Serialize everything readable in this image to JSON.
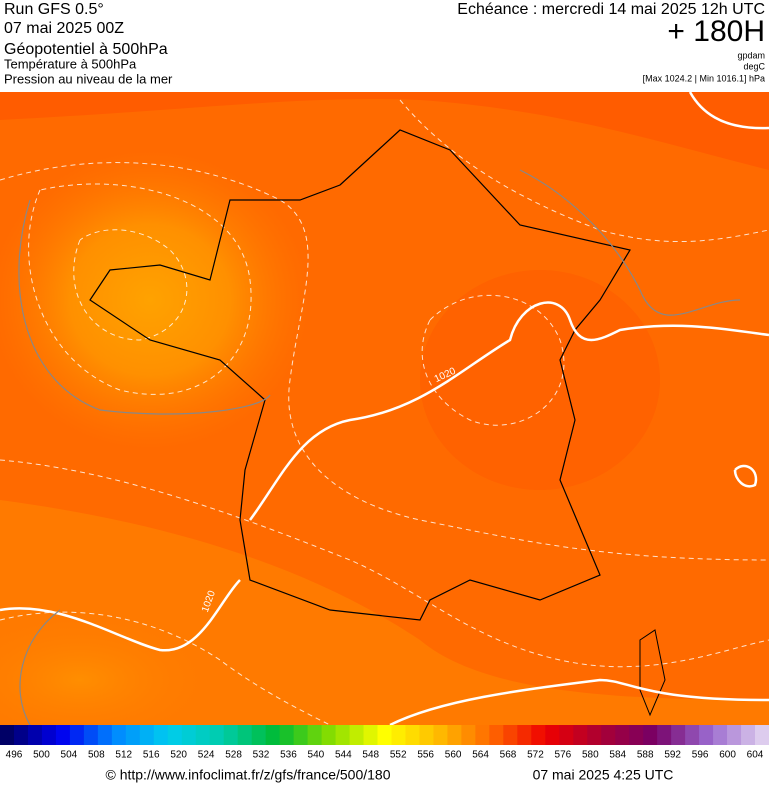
{
  "header": {
    "run": "Run GFS 0.5°",
    "date": "07 mai 2025 00Z",
    "fields": [
      "Géopotentiel à 500hPa",
      "Température à 500hPa",
      "Pression au niveau de la mer"
    ],
    "echeance": "Echéance : mercredi 14 mai 2025 12h UTC",
    "lead": "+ 180H",
    "units": [
      "gpdam",
      "degC",
      "[Max 1024.2 | Min 1016.1] hPa"
    ]
  },
  "map": {
    "isobar_labels": [
      "1020",
      "1020"
    ]
  },
  "legend": {
    "labels": [
      "496",
      "500",
      "504",
      "508",
      "512",
      "516",
      "520",
      "524",
      "528",
      "532",
      "536",
      "540",
      "544",
      "548",
      "552",
      "556",
      "560",
      "564",
      "568",
      "572",
      "576",
      "580",
      "584",
      "588",
      "592",
      "596",
      "600",
      "604"
    ]
  },
  "footer": {
    "url": "© http://www.infoclimat.fr/z/gfs/france/500/180",
    "timestamp": "07 mai 2025  4:25 UTC"
  }
}
